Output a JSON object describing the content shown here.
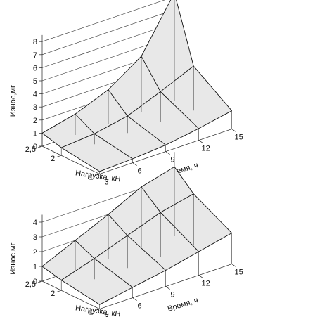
{
  "chart_data": [
    {
      "type": "surface",
      "zlabel": "Износ,мг",
      "xlabel": "Время, ч",
      "ylabel": "Нагрузка, кН",
      "z_ticks": [
        "0",
        "1",
        "2",
        "3",
        "4",
        "5",
        "6",
        "7",
        "8"
      ],
      "zlim": [
        0,
        8.5
      ],
      "time_ticks": [
        "3",
        "6",
        "9",
        "12",
        "15"
      ],
      "load_ticks": [
        "1",
        "2",
        "2,5"
      ],
      "time": [
        3,
        6,
        9,
        12,
        15
      ],
      "load": [
        1,
        2,
        2.5
      ],
      "wear": [
        [
          0.2,
          0.3,
          0.5,
          0.9,
          1.4
        ],
        [
          0.6,
          0.8,
          1.3,
          2.3,
          3.4
        ],
        [
          1.0,
          1.6,
          2.6,
          4.3,
          8.3
        ]
      ]
    },
    {
      "type": "surface",
      "zlabel": "Износ,мг",
      "xlabel": "Время, ч",
      "ylabel": "Нагрузка, кН",
      "z_ticks": [
        "0",
        "1",
        "2",
        "3",
        "4"
      ],
      "zlim": [
        0,
        4.5
      ],
      "time_ticks": [
        "3",
        "6",
        "9",
        "12",
        "15"
      ],
      "load_ticks": [
        "1",
        "2",
        "2,5"
      ],
      "time": [
        3,
        6,
        9,
        12,
        15
      ],
      "load": [
        1,
        2,
        2.5
      ],
      "wear": [
        [
          0.3,
          0.7,
          1.1,
          1.6,
          2.1
        ],
        [
          0.7,
          1.4,
          2.2,
          3.0,
          3.5
        ],
        [
          1.0,
          2.0,
          3.0,
          4.1,
          4.7
        ]
      ]
    }
  ]
}
